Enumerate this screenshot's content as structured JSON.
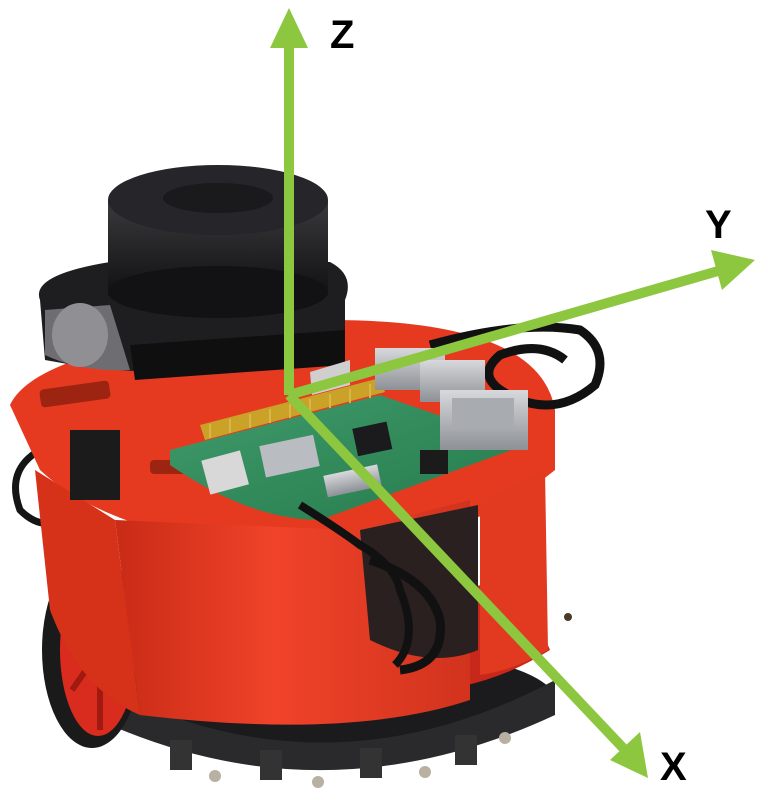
{
  "axes": {
    "z_label": "Z",
    "y_label": "Y",
    "x_label": "X",
    "color": "#8dc63f"
  },
  "robot": {
    "chassis_color": "#e8391f",
    "lidar_color": "#1c1c1e",
    "board_color": "#2f8a5a",
    "wheel_color": "#d92b1e"
  }
}
